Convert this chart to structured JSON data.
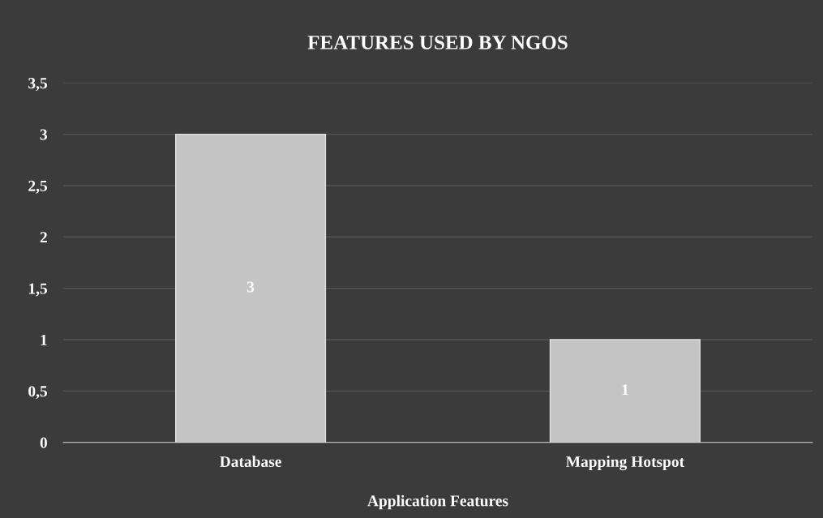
{
  "chart_data": {
    "type": "bar",
    "title": "FEATURES USED BY NGOS",
    "xlabel": "Application Features",
    "categories": [
      "Database",
      "Mapping Hotspot"
    ],
    "values": [
      3,
      1
    ],
    "color": "#c4c4c4",
    "ylim": [
      0,
      3.5
    ],
    "yticks": [
      0,
      {
        "value": 0.5,
        "label": "0,5"
      },
      1,
      {
        "value": 1.5,
        "label": "1,5"
      },
      2,
      {
        "value": 2.5,
        "label": "2,5"
      },
      3,
      {
        "value": 3.5,
        "label": "3,5"
      }
    ],
    "grid": "y",
    "data_labels": true
  }
}
